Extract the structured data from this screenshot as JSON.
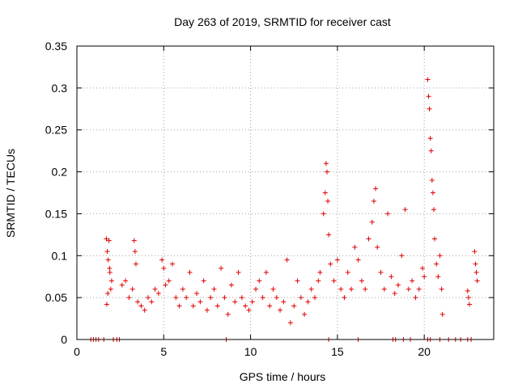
{
  "chart_data": {
    "type": "scatter",
    "title": "Day 263 of 2019, SRMTID for receiver cast",
    "xlabel": "GPS time / hours",
    "ylabel": "SRMTID / TECUs",
    "xlim": [
      0,
      24
    ],
    "ylim": [
      0,
      0.35
    ],
    "x_ticks": [
      0,
      5,
      10,
      15,
      20
    ],
    "y_ticks": [
      0,
      0.05,
      0.1,
      0.15,
      0.2,
      0.25,
      0.3,
      0.35
    ],
    "grid": true,
    "marker": "+",
    "color": "#e00000",
    "series": [
      {
        "name": "SRMTID",
        "points": [
          [
            0.8,
            0
          ],
          [
            0.95,
            0
          ],
          [
            1.1,
            0
          ],
          [
            1.25,
            0
          ],
          [
            1.55,
            0
          ],
          [
            2.1,
            0
          ],
          [
            2.3,
            0
          ],
          [
            2.45,
            0
          ],
          [
            8.6,
            0
          ],
          [
            14.5,
            0
          ],
          [
            16.2,
            0
          ],
          [
            18.2,
            0
          ],
          [
            18.35,
            0
          ],
          [
            18.8,
            0
          ],
          [
            19.2,
            0
          ],
          [
            20.2,
            0
          ],
          [
            20.35,
            0
          ],
          [
            20.9,
            0
          ],
          [
            21.4,
            0
          ],
          [
            21.8,
            0
          ],
          [
            22.1,
            0
          ],
          [
            22.5,
            0
          ],
          [
            22.7,
            0
          ],
          [
            1.7,
            0.12
          ],
          [
            1.75,
            0.105
          ],
          [
            1.8,
            0.095
          ],
          [
            1.85,
            0.118
          ],
          [
            1.9,
            0.08
          ],
          [
            1.95,
            0.06
          ],
          [
            2.0,
            0.07
          ],
          [
            1.72,
            0.042
          ],
          [
            1.78,
            0.055
          ],
          [
            1.88,
            0.085
          ],
          [
            2.6,
            0.065
          ],
          [
            2.8,
            0.07
          ],
          [
            3.0,
            0.05
          ],
          [
            3.2,
            0.06
          ],
          [
            3.3,
            0.118
          ],
          [
            3.35,
            0.105
          ],
          [
            3.4,
            0.09
          ],
          [
            3.5,
            0.045
          ],
          [
            3.7,
            0.04
          ],
          [
            3.9,
            0.035
          ],
          [
            4.1,
            0.05
          ],
          [
            4.3,
            0.045
          ],
          [
            4.5,
            0.06
          ],
          [
            4.7,
            0.055
          ],
          [
            4.9,
            0.095
          ],
          [
            5.0,
            0.085
          ],
          [
            5.1,
            0.065
          ],
          [
            5.3,
            0.07
          ],
          [
            5.5,
            0.09
          ],
          [
            5.7,
            0.05
          ],
          [
            5.9,
            0.04
          ],
          [
            6.1,
            0.06
          ],
          [
            6.3,
            0.05
          ],
          [
            6.5,
            0.08
          ],
          [
            6.7,
            0.04
          ],
          [
            6.9,
            0.055
          ],
          [
            7.1,
            0.045
          ],
          [
            7.3,
            0.07
          ],
          [
            7.5,
            0.035
          ],
          [
            7.7,
            0.05
          ],
          [
            7.9,
            0.06
          ],
          [
            8.1,
            0.04
          ],
          [
            8.3,
            0.085
          ],
          [
            8.5,
            0.05
          ],
          [
            8.7,
            0.03
          ],
          [
            8.9,
            0.065
          ],
          [
            9.1,
            0.045
          ],
          [
            9.3,
            0.08
          ],
          [
            9.5,
            0.05
          ],
          [
            9.7,
            0.04
          ],
          [
            9.9,
            0.035
          ],
          [
            10.1,
            0.045
          ],
          [
            10.3,
            0.06
          ],
          [
            10.5,
            0.07
          ],
          [
            10.7,
            0.05
          ],
          [
            10.9,
            0.08
          ],
          [
            11.1,
            0.04
          ],
          [
            11.3,
            0.06
          ],
          [
            11.5,
            0.05
          ],
          [
            11.7,
            0.035
          ],
          [
            11.9,
            0.045
          ],
          [
            12.1,
            0.095
          ],
          [
            12.3,
            0.02
          ],
          [
            12.5,
            0.04
          ],
          [
            12.7,
            0.07
          ],
          [
            12.9,
            0.05
          ],
          [
            13.1,
            0.03
          ],
          [
            13.3,
            0.045
          ],
          [
            13.5,
            0.06
          ],
          [
            13.7,
            0.05
          ],
          [
            13.9,
            0.07
          ],
          [
            14.0,
            0.08
          ],
          [
            14.2,
            0.15
          ],
          [
            14.3,
            0.175
          ],
          [
            14.35,
            0.21
          ],
          [
            14.4,
            0.2
          ],
          [
            14.45,
            0.165
          ],
          [
            14.5,
            0.125
          ],
          [
            14.6,
            0.09
          ],
          [
            14.8,
            0.07
          ],
          [
            15.0,
            0.095
          ],
          [
            15.2,
            0.06
          ],
          [
            15.4,
            0.05
          ],
          [
            15.6,
            0.08
          ],
          [
            15.8,
            0.06
          ],
          [
            16.0,
            0.11
          ],
          [
            16.2,
            0.095
          ],
          [
            16.4,
            0.07
          ],
          [
            16.6,
            0.06
          ],
          [
            16.8,
            0.12
          ],
          [
            17.0,
            0.14
          ],
          [
            17.1,
            0.165
          ],
          [
            17.2,
            0.18
          ],
          [
            17.3,
            0.11
          ],
          [
            17.5,
            0.08
          ],
          [
            17.7,
            0.06
          ],
          [
            17.9,
            0.15
          ],
          [
            18.1,
            0.075
          ],
          [
            18.3,
            0.055
          ],
          [
            18.5,
            0.065
          ],
          [
            18.7,
            0.1
          ],
          [
            18.9,
            0.155
          ],
          [
            19.1,
            0.06
          ],
          [
            19.3,
            0.07
          ],
          [
            19.5,
            0.05
          ],
          [
            19.7,
            0.06
          ],
          [
            19.9,
            0.085
          ],
          [
            20.0,
            0.075
          ],
          [
            20.2,
            0.31
          ],
          [
            20.25,
            0.29
          ],
          [
            20.3,
            0.275
          ],
          [
            20.35,
            0.24
          ],
          [
            20.4,
            0.225
          ],
          [
            20.45,
            0.19
          ],
          [
            20.5,
            0.175
          ],
          [
            20.55,
            0.155
          ],
          [
            20.6,
            0.12
          ],
          [
            20.7,
            0.09
          ],
          [
            20.8,
            0.075
          ],
          [
            20.9,
            0.1
          ],
          [
            21.0,
            0.06
          ],
          [
            21.05,
            0.03
          ],
          [
            22.5,
            0.058
          ],
          [
            22.55,
            0.05
          ],
          [
            22.6,
            0.042
          ],
          [
            22.9,
            0.105
          ],
          [
            22.95,
            0.09
          ],
          [
            23.0,
            0.08
          ],
          [
            23.05,
            0.07
          ]
        ]
      }
    ]
  }
}
